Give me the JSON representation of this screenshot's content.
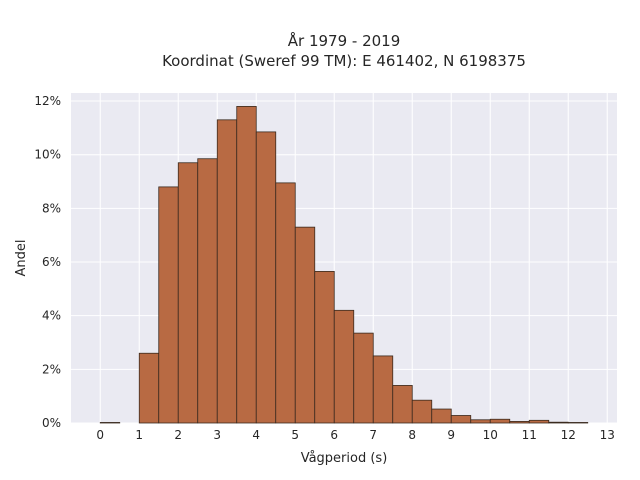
{
  "chart_data": {
    "type": "bar",
    "title_lines": [
      "År 1979 - 2019",
      "Koordinat (Sweref 99 TM): E 461402, N 6198375"
    ],
    "xlabel": "Vågperiod (s)",
    "ylabel": "Andel",
    "xlim": [
      -0.75,
      13.25
    ],
    "ylim": [
      0,
      12.3
    ],
    "xticks": [
      0,
      1,
      2,
      3,
      4,
      5,
      6,
      7,
      8,
      9,
      10,
      11,
      12,
      13
    ],
    "xtick_labels": [
      "0",
      "1",
      "2",
      "3",
      "4",
      "5",
      "6",
      "7",
      "8",
      "9",
      "10",
      "11",
      "12",
      "13"
    ],
    "yticks": [
      0,
      2,
      4,
      6,
      8,
      10,
      12
    ],
    "ytick_labels": [
      "0%",
      "2%",
      "4%",
      "6%",
      "8%",
      "10%",
      "12%"
    ],
    "bin_width": 0.5,
    "bins": [
      {
        "x0": 0.0,
        "value": 0.02
      },
      {
        "x0": 0.5,
        "value": 0.0
      },
      {
        "x0": 1.0,
        "value": 2.6
      },
      {
        "x0": 1.5,
        "value": 8.8
      },
      {
        "x0": 2.0,
        "value": 9.7
      },
      {
        "x0": 2.5,
        "value": 9.85
      },
      {
        "x0": 3.0,
        "value": 11.3
      },
      {
        "x0": 3.5,
        "value": 11.8
      },
      {
        "x0": 4.0,
        "value": 10.85
      },
      {
        "x0": 4.5,
        "value": 8.95
      },
      {
        "x0": 5.0,
        "value": 7.3
      },
      {
        "x0": 5.5,
        "value": 5.65
      },
      {
        "x0": 6.0,
        "value": 4.2
      },
      {
        "x0": 6.5,
        "value": 3.35
      },
      {
        "x0": 7.0,
        "value": 2.5
      },
      {
        "x0": 7.5,
        "value": 1.4
      },
      {
        "x0": 8.0,
        "value": 0.85
      },
      {
        "x0": 8.5,
        "value": 0.52
      },
      {
        "x0": 9.0,
        "value": 0.28
      },
      {
        "x0": 9.5,
        "value": 0.12
      },
      {
        "x0": 10.0,
        "value": 0.14
      },
      {
        "x0": 10.5,
        "value": 0.06
      },
      {
        "x0": 11.0,
        "value": 0.1
      },
      {
        "x0": 11.5,
        "value": 0.03
      },
      {
        "x0": 12.0,
        "value": 0.02
      },
      {
        "x0": 12.5,
        "value": 0.0
      }
    ],
    "grid": true,
    "colors": {
      "bar_fill": "#b86a43",
      "bar_edge": "#3a2a1e",
      "plot_background": "#eaeaf2",
      "grid": "#ffffff"
    }
  }
}
